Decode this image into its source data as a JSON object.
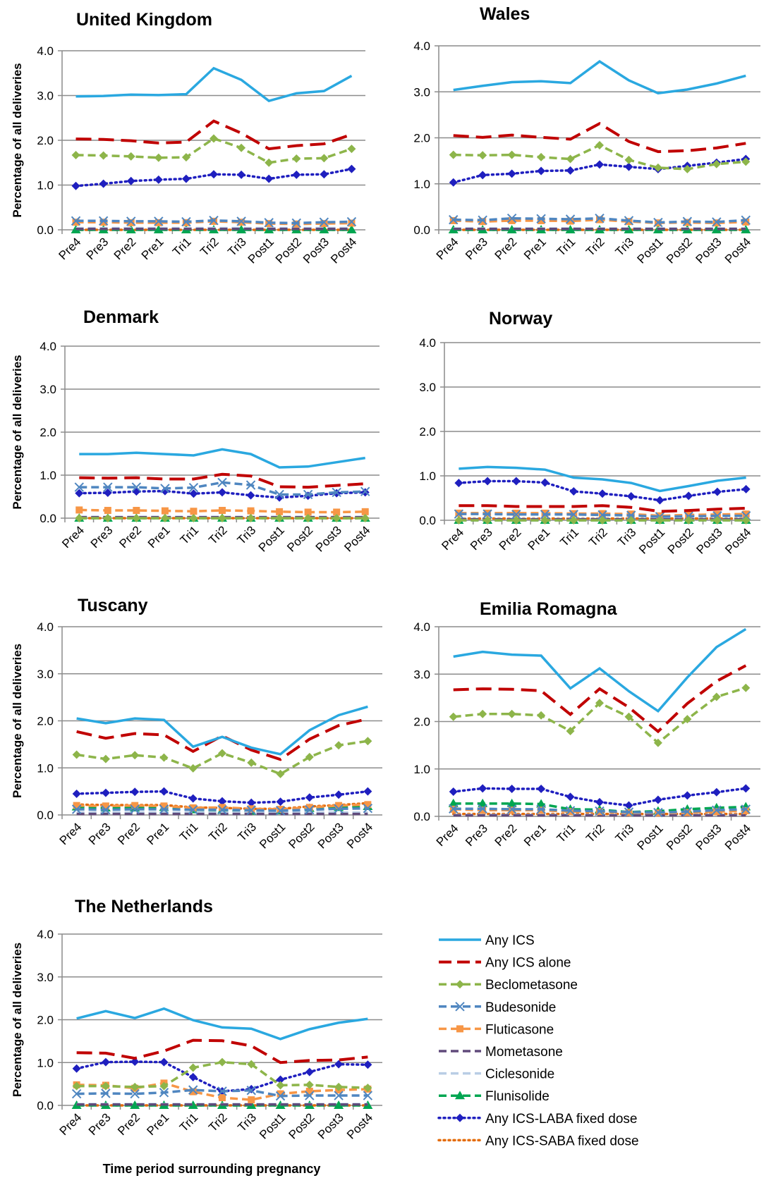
{
  "chart_data": {
    "type": "line",
    "ylabel": "Percentage of all deliveries",
    "xlabel": "Time period surrounding pregnancy",
    "categories": [
      "Pre4",
      "Pre3",
      "Pre2",
      "Pre1",
      "Tri1",
      "Tri2",
      "Tri3",
      "Post1",
      "Post2",
      "Post3",
      "Post4"
    ],
    "yticks": [
      "0.0",
      "1.0",
      "2.0",
      "3.0",
      "4.0"
    ],
    "ylim": [
      0,
      4
    ],
    "grid": true,
    "legend_position": "bottom-right",
    "series_styles": [
      {
        "name": "Any ICS",
        "color": "#2aa8e0",
        "dash": "solid",
        "marker": "none"
      },
      {
        "name": "Any ICS alone",
        "color": "#c00000",
        "dash": "long-dash",
        "marker": "none"
      },
      {
        "name": "Beclometasone",
        "color": "#8db54a",
        "dash": "dash",
        "marker": "diamond"
      },
      {
        "name": "Budesonide",
        "color": "#4f86c0",
        "dash": "dash",
        "marker": "x"
      },
      {
        "name": "Fluticasone",
        "color": "#f79646",
        "dash": "dash",
        "marker": "square"
      },
      {
        "name": "Mometasone",
        "color": "#604a7b",
        "dash": "dash",
        "marker": "none"
      },
      {
        "name": "Ciclesonide",
        "color": "#b9cde5",
        "dash": "dash",
        "marker": "none"
      },
      {
        "name": "Flunisolide",
        "color": "#00a651",
        "dash": "dash",
        "marker": "triangle"
      },
      {
        "name": "Any ICS-LABA fixed dose",
        "color": "#1f1fbf",
        "dash": "dot",
        "marker": "diamond"
      },
      {
        "name": "Any ICS-SABA fixed dose",
        "color": "#e46c0a",
        "dash": "dot",
        "marker": "none"
      }
    ],
    "panels": [
      {
        "title": "United Kingdom",
        "series": [
          [
            2.98,
            2.99,
            3.02,
            3.01,
            3.03,
            3.61,
            3.35,
            2.88,
            3.05,
            3.1,
            3.44
          ],
          [
            2.03,
            2.02,
            1.99,
            1.94,
            1.96,
            2.43,
            2.16,
            1.81,
            1.88,
            1.92,
            2.13
          ],
          [
            1.67,
            1.66,
            1.64,
            1.61,
            1.62,
            2.04,
            1.83,
            1.5,
            1.59,
            1.6,
            1.81
          ],
          [
            0.2,
            0.2,
            0.19,
            0.19,
            0.18,
            0.21,
            0.19,
            0.16,
            0.15,
            0.17,
            0.18
          ],
          [
            0.17,
            0.17,
            0.16,
            0.16,
            0.16,
            0.19,
            0.17,
            0.14,
            0.13,
            0.14,
            0.15
          ],
          [
            0.02,
            0.02,
            0.02,
            0.02,
            0.02,
            0.02,
            0.02,
            0.02,
            0.02,
            0.02,
            0.02
          ],
          [
            0.04,
            0.04,
            0.04,
            0.04,
            0.04,
            0.04,
            0.04,
            0.04,
            0.04,
            0.04,
            0.04
          ],
          [
            0.0,
            0.0,
            0.0,
            0.0,
            0.0,
            0.0,
            0.0,
            0.0,
            0.0,
            0.0,
            0.0
          ],
          [
            0.98,
            1.03,
            1.09,
            1.12,
            1.14,
            1.24,
            1.23,
            1.14,
            1.23,
            1.24,
            1.36
          ],
          [
            0.0,
            0.0,
            0.0,
            0.0,
            0.0,
            0.0,
            0.0,
            0.0,
            0.0,
            0.0,
            0.0
          ]
        ]
      },
      {
        "title": "Wales",
        "series": [
          [
            3.04,
            3.13,
            3.21,
            3.23,
            3.19,
            3.66,
            3.25,
            2.97,
            3.05,
            3.18,
            3.35
          ],
          [
            2.05,
            2.01,
            2.06,
            2.01,
            1.97,
            2.31,
            1.92,
            1.7,
            1.72,
            1.78,
            1.88
          ],
          [
            1.63,
            1.62,
            1.63,
            1.58,
            1.54,
            1.84,
            1.52,
            1.35,
            1.32,
            1.43,
            1.48
          ],
          [
            0.22,
            0.21,
            0.25,
            0.24,
            0.23,
            0.25,
            0.2,
            0.16,
            0.18,
            0.17,
            0.21
          ],
          [
            0.2,
            0.18,
            0.2,
            0.2,
            0.19,
            0.22,
            0.18,
            0.15,
            0.16,
            0.15,
            0.17
          ],
          [
            0.02,
            0.02,
            0.02,
            0.02,
            0.02,
            0.02,
            0.02,
            0.02,
            0.02,
            0.02,
            0.02
          ],
          [
            0.03,
            0.03,
            0.03,
            0.03,
            0.03,
            0.03,
            0.03,
            0.03,
            0.03,
            0.03,
            0.03
          ],
          [
            0.0,
            0.0,
            0.0,
            0.0,
            0.0,
            0.0,
            0.0,
            0.0,
            0.0,
            0.0,
            0.0
          ],
          [
            1.03,
            1.19,
            1.22,
            1.28,
            1.29,
            1.42,
            1.37,
            1.32,
            1.39,
            1.46,
            1.54
          ],
          [
            0.0,
            0.0,
            0.0,
            0.0,
            0.0,
            0.0,
            0.0,
            0.0,
            0.0,
            0.0,
            0.0
          ]
        ]
      },
      {
        "title": "Denmark",
        "series": [
          [
            1.49,
            1.49,
            1.52,
            1.49,
            1.46,
            1.6,
            1.49,
            1.18,
            1.2,
            1.3,
            1.4
          ],
          [
            0.94,
            0.93,
            0.94,
            0.91,
            0.91,
            1.02,
            0.98,
            0.73,
            0.72,
            0.76,
            0.8
          ],
          [
            0.0,
            0.0,
            0.0,
            0.0,
            0.0,
            0.0,
            0.0,
            0.0,
            0.0,
            0.0,
            0.0
          ],
          [
            0.72,
            0.72,
            0.72,
            0.69,
            0.71,
            0.83,
            0.77,
            0.55,
            0.55,
            0.6,
            0.62
          ],
          [
            0.19,
            0.18,
            0.18,
            0.17,
            0.16,
            0.18,
            0.17,
            0.15,
            0.14,
            0.14,
            0.15
          ],
          [
            0.02,
            0.02,
            0.02,
            0.02,
            0.02,
            0.02,
            0.02,
            0.02,
            0.02,
            0.02,
            0.02
          ],
          [
            0.03,
            0.03,
            0.03,
            0.03,
            0.03,
            0.03,
            0.03,
            0.03,
            0.03,
            0.03,
            0.03
          ],
          [
            0.0,
            0.0,
            0.0,
            0.0,
            0.0,
            0.0,
            0.0,
            0.0,
            0.0,
            0.0,
            0.0
          ],
          [
            0.58,
            0.59,
            0.62,
            0.63,
            0.57,
            0.6,
            0.53,
            0.48,
            0.52,
            0.58,
            0.6
          ],
          [
            0.0,
            0.0,
            0.0,
            0.0,
            0.0,
            0.0,
            0.0,
            0.0,
            0.0,
            0.0,
            0.0
          ]
        ]
      },
      {
        "title": "Norway",
        "series": [
          [
            1.16,
            1.2,
            1.18,
            1.14,
            0.96,
            0.92,
            0.84,
            0.66,
            0.77,
            0.89,
            0.96
          ],
          [
            0.33,
            0.33,
            0.31,
            0.31,
            0.31,
            0.33,
            0.29,
            0.2,
            0.22,
            0.25,
            0.27
          ],
          [
            0.0,
            0.0,
            0.0,
            0.0,
            0.0,
            0.0,
            0.0,
            0.0,
            0.0,
            0.0,
            0.0
          ],
          [
            0.14,
            0.14,
            0.13,
            0.13,
            0.13,
            0.12,
            0.11,
            0.08,
            0.09,
            0.1,
            0.1
          ],
          [
            0.16,
            0.16,
            0.16,
            0.16,
            0.15,
            0.15,
            0.14,
            0.1,
            0.12,
            0.13,
            0.14
          ],
          [
            0.02,
            0.02,
            0.02,
            0.02,
            0.02,
            0.02,
            0.02,
            0.02,
            0.02,
            0.02,
            0.02
          ],
          [
            0.03,
            0.03,
            0.03,
            0.03,
            0.03,
            0.03,
            0.03,
            0.03,
            0.03,
            0.03,
            0.03
          ],
          [
            0.0,
            0.0,
            0.0,
            0.0,
            0.0,
            0.0,
            0.0,
            0.0,
            0.0,
            0.0,
            0.0
          ],
          [
            0.84,
            0.88,
            0.88,
            0.85,
            0.65,
            0.6,
            0.54,
            0.45,
            0.55,
            0.64,
            0.7
          ],
          [
            0.04,
            0.04,
            0.04,
            0.04,
            0.04,
            0.04,
            0.04,
            0.04,
            0.04,
            0.04,
            0.04
          ]
        ]
      },
      {
        "title": "Tuscany",
        "series": [
          [
            2.05,
            1.95,
            2.05,
            2.02,
            1.45,
            1.66,
            1.43,
            1.29,
            1.8,
            2.12,
            2.3
          ],
          [
            1.77,
            1.63,
            1.73,
            1.7,
            1.35,
            1.68,
            1.38,
            1.18,
            1.61,
            1.9,
            2.04
          ],
          [
            1.28,
            1.19,
            1.27,
            1.22,
            0.99,
            1.31,
            1.11,
            0.87,
            1.23,
            1.48,
            1.57
          ],
          [
            0.12,
            0.11,
            0.12,
            0.12,
            0.11,
            0.11,
            0.1,
            0.09,
            0.11,
            0.13,
            0.14
          ],
          [
            0.2,
            0.19,
            0.2,
            0.19,
            0.15,
            0.16,
            0.13,
            0.12,
            0.16,
            0.2,
            0.22
          ],
          [
            0.02,
            0.02,
            0.02,
            0.02,
            0.02,
            0.02,
            0.02,
            0.02,
            0.02,
            0.02,
            0.02
          ],
          [
            0.05,
            0.05,
            0.05,
            0.05,
            0.05,
            0.05,
            0.05,
            0.05,
            0.05,
            0.05,
            0.05
          ],
          [
            0.17,
            0.15,
            0.15,
            0.16,
            0.11,
            0.1,
            0.08,
            0.09,
            0.14,
            0.16,
            0.18
          ],
          [
            0.45,
            0.47,
            0.49,
            0.5,
            0.35,
            0.29,
            0.26,
            0.28,
            0.37,
            0.43,
            0.5
          ],
          [
            0.22,
            0.21,
            0.21,
            0.21,
            0.16,
            0.15,
            0.13,
            0.13,
            0.18,
            0.21,
            0.25
          ]
        ]
      },
      {
        "title": "Emilia Romagna",
        "series": [
          [
            3.37,
            3.47,
            3.41,
            3.39,
            2.7,
            3.12,
            2.64,
            2.22,
            2.93,
            3.57,
            3.95
          ],
          [
            2.67,
            2.69,
            2.68,
            2.65,
            2.15,
            2.69,
            2.3,
            1.79,
            2.38,
            2.85,
            3.18
          ],
          [
            2.1,
            2.16,
            2.16,
            2.13,
            1.8,
            2.39,
            2.1,
            1.55,
            2.05,
            2.52,
            2.71
          ],
          [
            0.16,
            0.16,
            0.15,
            0.15,
            0.12,
            0.11,
            0.09,
            0.08,
            0.1,
            0.13,
            0.15
          ],
          [
            0.15,
            0.13,
            0.13,
            0.13,
            0.1,
            0.1,
            0.08,
            0.07,
            0.08,
            0.1,
            0.12
          ],
          [
            0.02,
            0.02,
            0.02,
            0.02,
            0.02,
            0.02,
            0.02,
            0.02,
            0.02,
            0.02,
            0.02
          ],
          [
            0.03,
            0.03,
            0.03,
            0.03,
            0.03,
            0.03,
            0.03,
            0.03,
            0.03,
            0.03,
            0.03
          ],
          [
            0.27,
            0.27,
            0.27,
            0.26,
            0.15,
            0.14,
            0.09,
            0.11,
            0.15,
            0.18,
            0.2
          ],
          [
            0.52,
            0.59,
            0.58,
            0.58,
            0.41,
            0.3,
            0.23,
            0.35,
            0.44,
            0.51,
            0.59
          ],
          [
            0.05,
            0.05,
            0.05,
            0.05,
            0.05,
            0.05,
            0.05,
            0.05,
            0.05,
            0.05,
            0.05
          ]
        ]
      },
      {
        "title": "The Netherlands",
        "series": [
          [
            2.03,
            2.2,
            2.04,
            2.26,
            1.99,
            1.82,
            1.79,
            1.55,
            1.78,
            1.93,
            2.02
          ],
          [
            1.23,
            1.22,
            1.1,
            1.27,
            1.52,
            1.51,
            1.39,
            1.0,
            1.05,
            1.06,
            1.13
          ],
          [
            0.45,
            0.45,
            0.43,
            0.45,
            0.88,
            1.01,
            0.96,
            0.47,
            0.48,
            0.43,
            0.41
          ],
          [
            0.27,
            0.28,
            0.27,
            0.3,
            0.36,
            0.33,
            0.35,
            0.22,
            0.23,
            0.23,
            0.23
          ],
          [
            0.48,
            0.47,
            0.4,
            0.52,
            0.32,
            0.18,
            0.13,
            0.27,
            0.33,
            0.36,
            0.38
          ],
          [
            0.02,
            0.02,
            0.02,
            0.02,
            0.02,
            0.02,
            0.02,
            0.02,
            0.02,
            0.02,
            0.02
          ],
          [
            0.03,
            0.03,
            0.03,
            0.03,
            0.03,
            0.03,
            0.03,
            0.03,
            0.03,
            0.03,
            0.03
          ],
          [
            0.0,
            0.0,
            0.0,
            0.0,
            0.0,
            0.0,
            0.0,
            0.0,
            0.0,
            0.0,
            0.0
          ],
          [
            0.86,
            1.01,
            1.02,
            1.01,
            0.66,
            0.33,
            0.38,
            0.6,
            0.78,
            0.96,
            0.95
          ],
          [
            0.0,
            0.0,
            0.0,
            0.0,
            0.0,
            0.0,
            0.0,
            0.0,
            0.0,
            0.0,
            0.0
          ]
        ]
      }
    ]
  }
}
